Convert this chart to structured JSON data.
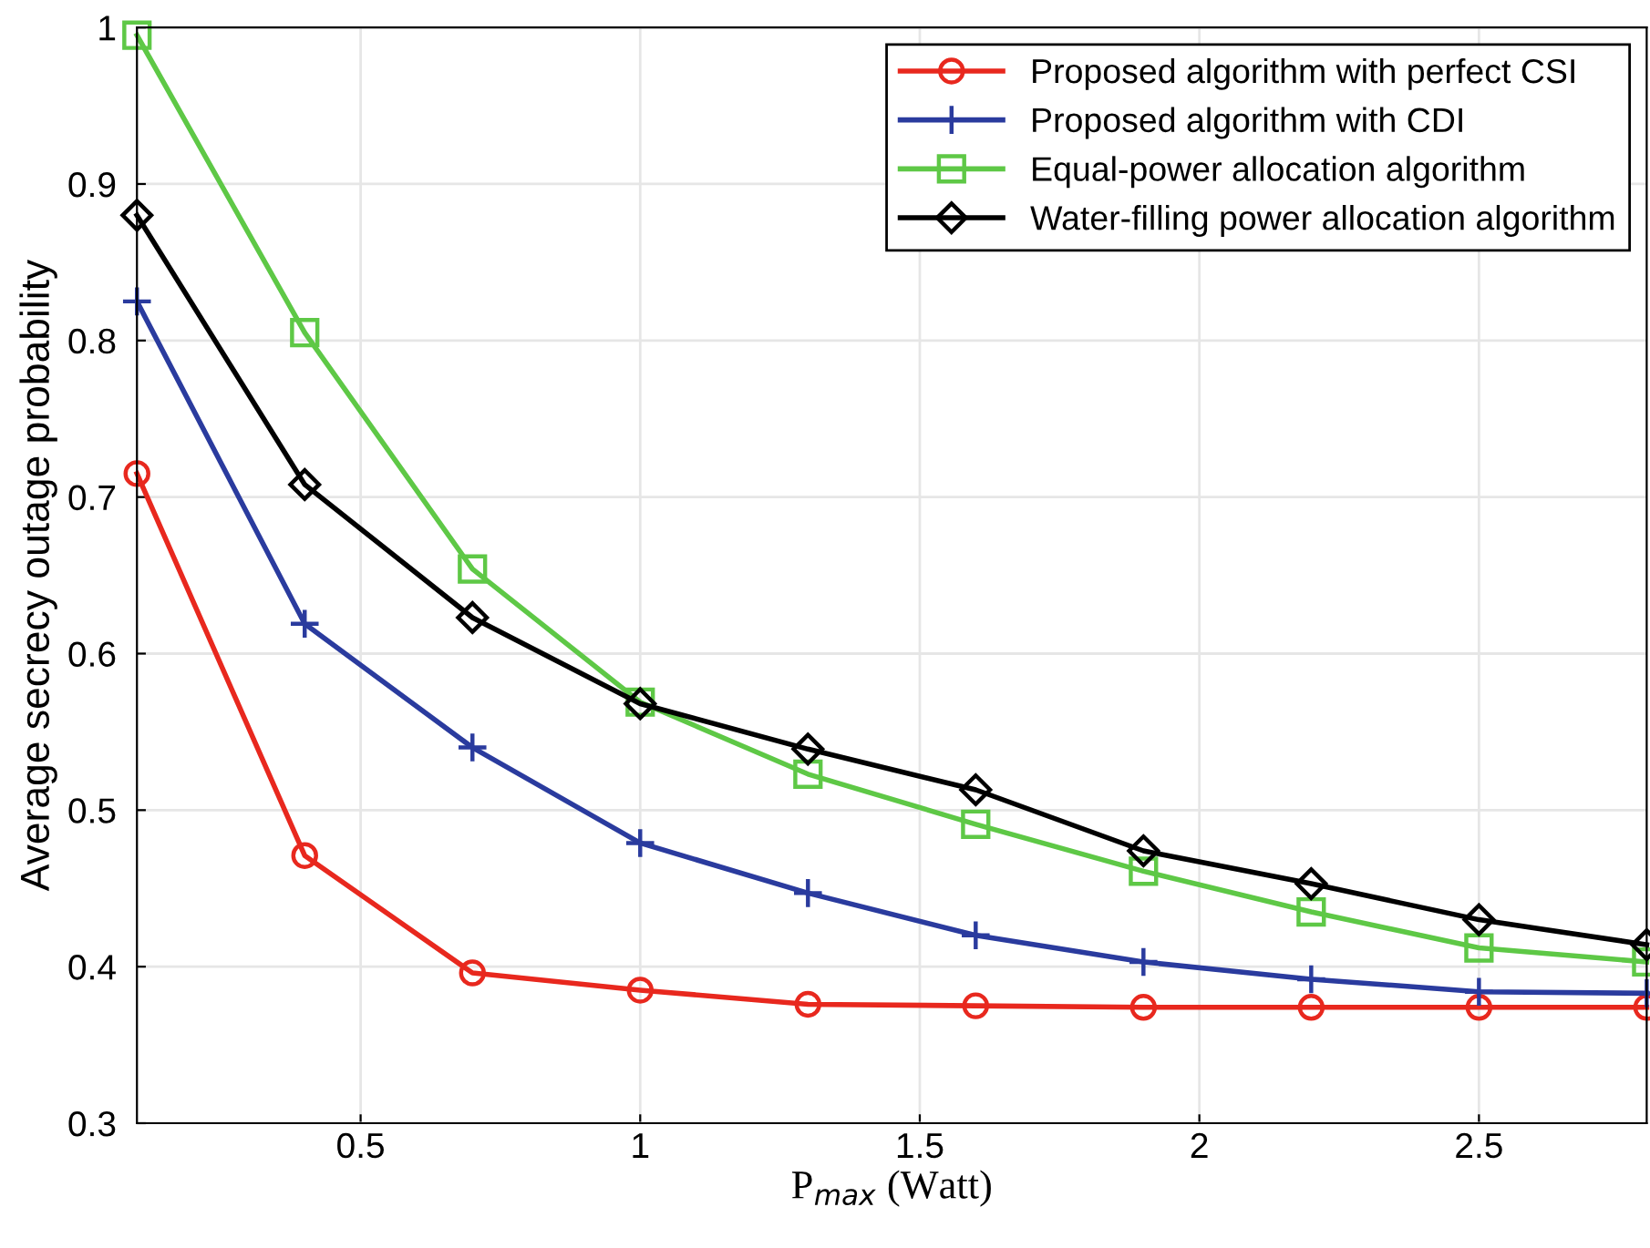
{
  "chart_data": {
    "type": "line",
    "xlabel": "P$_{max}$ (Watt)",
    "ylabel": "Average secrecy outage probability",
    "x": [
      0.1,
      0.4,
      0.7,
      1.0,
      1.3,
      1.6,
      1.9,
      2.2,
      2.5,
      2.8
    ],
    "series": [
      {
        "name": "Proposed algorithm with perfect CSI",
        "color": "#e8281e",
        "marker": "circle",
        "values": [
          0.715,
          0.471,
          0.396,
          0.385,
          0.376,
          0.375,
          0.374,
          0.374,
          0.374,
          0.374
        ]
      },
      {
        "name": "Proposed algorithm with CDI",
        "color": "#2a3b9e",
        "marker": "cross",
        "values": [
          0.825,
          0.619,
          0.54,
          0.479,
          0.447,
          0.42,
          0.403,
          0.392,
          0.384,
          0.383
        ]
      },
      {
        "name": "Equal-power allocation algorithm",
        "color": "#5ec846",
        "marker": "square",
        "values": [
          0.995,
          0.805,
          0.654,
          0.569,
          0.523,
          0.491,
          0.461,
          0.435,
          0.412,
          0.403
        ]
      },
      {
        "name": "Water-filling power allocation algorithm",
        "color": "#000000",
        "marker": "diamond",
        "values": [
          0.88,
          0.708,
          0.623,
          0.568,
          0.539,
          0.513,
          0.474,
          0.453,
          0.43,
          0.414
        ]
      }
    ],
    "xlim": [
      0.1,
      2.8
    ],
    "ylim": [
      0.3,
      1.0
    ],
    "xticks": [
      0.5,
      1,
      1.5,
      2,
      2.5
    ],
    "yticks": [
      0.3,
      0.4,
      0.5,
      0.6,
      0.7,
      0.8,
      0.9,
      1
    ],
    "grid": true,
    "legend": "top right",
    "line_style": "solid"
  }
}
